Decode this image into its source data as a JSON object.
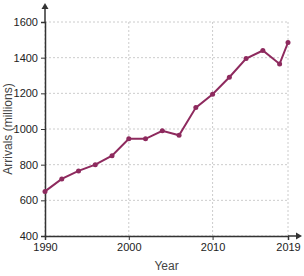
{
  "chart_data": {
    "type": "line",
    "x_label": "Year",
    "y_label": "Arrivals (millions)",
    "x": [
      1990,
      1992,
      1994,
      1996,
      1998,
      2000,
      2002,
      2004,
      2006,
      2008,
      2010,
      2012,
      2014,
      2016,
      2018,
      2019
    ],
    "values": [
      650,
      720,
      765,
      800,
      850,
      945,
      945,
      990,
      965,
      1120,
      1195,
      1290,
      1395,
      1440,
      1365,
      1485
    ],
    "color": "#8e2a5e",
    "marker": "circle",
    "xlim": [
      1990,
      2019
    ],
    "xticks": [
      1990,
      2000,
      2010,
      2019
    ],
    "ylim": [
      400,
      1600
    ],
    "yticks": [
      400,
      600,
      800,
      1000,
      1200,
      1400,
      1600
    ],
    "grid": true
  }
}
